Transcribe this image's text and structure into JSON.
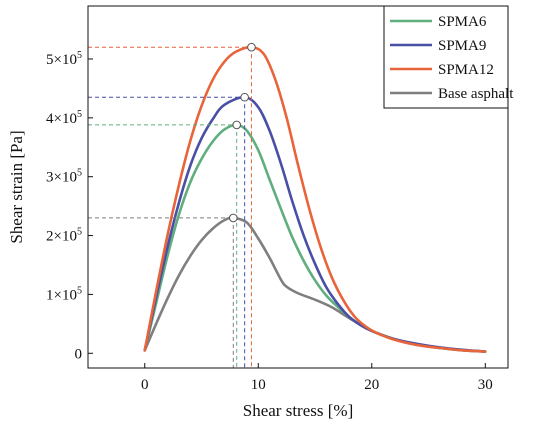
{
  "chart_data": {
    "type": "line",
    "xlabel": "Shear stress [%]",
    "ylabel": "Shear strain [Pa]",
    "xlim": [
      -5,
      32
    ],
    "ylim": [
      -25000,
      590000
    ],
    "x_ticks": [
      {
        "value": 0,
        "label": "0"
      },
      {
        "value": 10,
        "label": "10"
      },
      {
        "value": 20,
        "label": "20"
      },
      {
        "value": 30,
        "label": "30"
      }
    ],
    "y_ticks": [
      {
        "value": 0,
        "label": "0",
        "mantissa": "",
        "exp": ""
      },
      {
        "value": 100000,
        "label": "1×10",
        "mantissa": "1×10",
        "exp": "5"
      },
      {
        "value": 200000,
        "label": "2×10",
        "mantissa": "2×10",
        "exp": "5"
      },
      {
        "value": 300000,
        "label": "3×10",
        "mantissa": "3×10",
        "exp": "5"
      },
      {
        "value": 400000,
        "label": "4×10",
        "mantissa": "4×10",
        "exp": "5"
      },
      {
        "value": 500000,
        "label": "5×10",
        "mantissa": "5×10",
        "exp": "5"
      }
    ],
    "legend_position": "top-right",
    "grid": false,
    "series": [
      {
        "name": "SPMA6",
        "color": "#5fae7e",
        "peak": {
          "x": 8.1,
          "y": 388000
        },
        "x": [
          0,
          1,
          2,
          3,
          4,
          5,
          6,
          7,
          8.1,
          9,
          10,
          11,
          12,
          13,
          14,
          15,
          16,
          17,
          18,
          19,
          20,
          22,
          24,
          26,
          28,
          30
        ],
        "y": [
          5000,
          85000,
          165000,
          235000,
          290000,
          330000,
          360000,
          380000,
          388000,
          378000,
          345000,
          295000,
          245000,
          197000,
          157000,
          124000,
          98000,
          79000,
          62000,
          48000,
          38000,
          24000,
          15000,
          9000,
          5000,
          3000
        ]
      },
      {
        "name": "SPMA9",
        "color": "#4a4fa6",
        "peak": {
          "x": 8.8,
          "y": 435000
        },
        "x": [
          0,
          1,
          2,
          3,
          4,
          5,
          6,
          7,
          8.8,
          10,
          11,
          12,
          13,
          14,
          15,
          16,
          17,
          18,
          19,
          20,
          22,
          24,
          26,
          28,
          30
        ],
        "y": [
          5000,
          95000,
          180000,
          255000,
          318000,
          365000,
          398000,
          422000,
          435000,
          418000,
          378000,
          322000,
          258000,
          200000,
          152000,
          112000,
          84000,
          62000,
          48000,
          38000,
          24000,
          16000,
          10000,
          6000,
          3000
        ]
      },
      {
        "name": "SPMA12",
        "color": "#e8643a",
        "peak": {
          "x": 9.4,
          "y": 520000
        },
        "x": [
          0,
          1,
          2,
          3,
          4,
          5,
          6,
          7,
          8,
          9.4,
          10.5,
          11.5,
          12.5,
          13.5,
          14.5,
          15.5,
          16.5,
          17.5,
          18.5,
          19.5,
          20.5,
          22,
          24,
          26,
          28,
          30
        ],
        "y": [
          5000,
          105000,
          200000,
          285000,
          360000,
          420000,
          465000,
          495000,
          512000,
          520000,
          508000,
          465000,
          400000,
          320000,
          245000,
          180000,
          128000,
          90000,
          62000,
          45000,
          34000,
          23000,
          14000,
          9000,
          5000,
          3000
        ]
      },
      {
        "name": "Base asphalt",
        "color": "#7f7f7f",
        "peak": {
          "x": 7.8,
          "y": 230000
        },
        "x": [
          0,
          1,
          2,
          3,
          4,
          5,
          6,
          7,
          7.8,
          9,
          10,
          11,
          12,
          12.5,
          13.5,
          15,
          16.5,
          18,
          20,
          22,
          24,
          26,
          28,
          30
        ],
        "y": [
          5000,
          50000,
          93000,
          132000,
          165000,
          192000,
          212000,
          226000,
          230000,
          222000,
          195000,
          162000,
          125000,
          113000,
          102000,
          91000,
          78000,
          60000,
          38000,
          24000,
          15000,
          9000,
          5000,
          3000
        ]
      }
    ]
  }
}
